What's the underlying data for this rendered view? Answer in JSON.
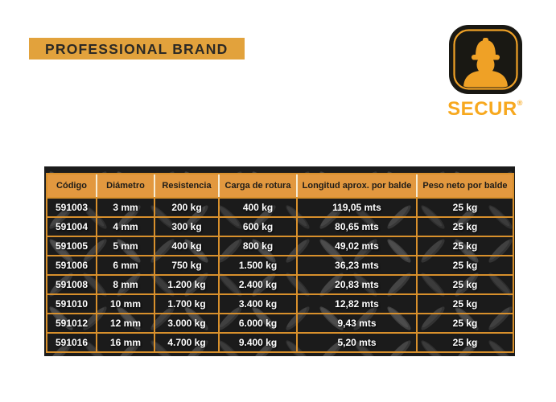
{
  "banner": {
    "label": "PROFESSIONAL BRAND"
  },
  "logo": {
    "name": "SECUR",
    "registered_mark": "®"
  },
  "table": {
    "columns": [
      "Código",
      "Diámetro",
      "Resistencia",
      "Carga de rotura",
      "Longitud aprox. por balde",
      "Peso neto por balde"
    ],
    "rows": [
      [
        "591003",
        "3 mm",
        "200 kg",
        "400 kg",
        "119,05 mts",
        "25 kg"
      ],
      [
        "591004",
        "4 mm",
        "300 kg",
        "600 kg",
        "80,65 mts",
        "25 kg"
      ],
      [
        "591005",
        "5 mm",
        "400 kg",
        "800 kg",
        "49,02 mts",
        "25 kg"
      ],
      [
        "591006",
        "6 mm",
        "750 kg",
        "1.500 kg",
        "36,23 mts",
        "25 kg"
      ],
      [
        "591008",
        "8 mm",
        "1.200 kg",
        "2.400 kg",
        "20,83 mts",
        "25 kg"
      ],
      [
        "591010",
        "10 mm",
        "1.700 kg",
        "3.400 kg",
        "12,82 mts",
        "25 kg"
      ],
      [
        "591012",
        "12 mm",
        "3.000 kg",
        "6.000 kg",
        "9,43 mts",
        "25 kg"
      ],
      [
        "591016",
        "16 mm",
        "4.700 kg",
        "9.400 kg",
        "5,20 mts",
        "25 kg"
      ]
    ]
  },
  "colors": {
    "banner_orange": "#E2A23C",
    "header_orange": "#E2983F",
    "grid_orange": "#D8902C",
    "header_separator_white": "#F6ECD4",
    "logo_icon_orange": "#EFA126",
    "secur_text_orange": "#F7A81E",
    "panel_dark": "#1B1B1B",
    "header_text": "#1F1C18",
    "body_text": "#FFFFFF"
  }
}
